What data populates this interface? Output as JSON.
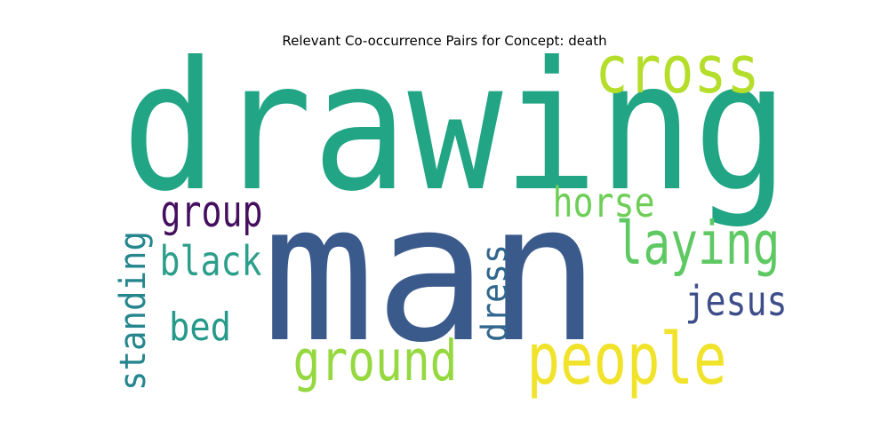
{
  "chart_data": {
    "type": "wordcloud",
    "title": "Relevant Co-occurrence Pairs for Concept: death",
    "words": [
      {
        "text": "drawing",
        "color": "#21a585"
      },
      {
        "text": "man",
        "color": "#3b5a8c"
      },
      {
        "text": "cross",
        "color": "#b5de2b"
      },
      {
        "text": "people",
        "color": "#f1e32b"
      },
      {
        "text": "laying",
        "color": "#5ec962"
      },
      {
        "text": "ground",
        "color": "#95d840"
      },
      {
        "text": "horse",
        "color": "#6ece58"
      },
      {
        "text": "group",
        "color": "#440f5e"
      },
      {
        "text": "black",
        "color": "#2c9f8b"
      },
      {
        "text": "standing",
        "color": "#25868e"
      },
      {
        "text": "dress",
        "color": "#31668e"
      },
      {
        "text": "jesus",
        "color": "#3e4e8a"
      },
      {
        "text": "bed",
        "color": "#25998a"
      }
    ]
  }
}
